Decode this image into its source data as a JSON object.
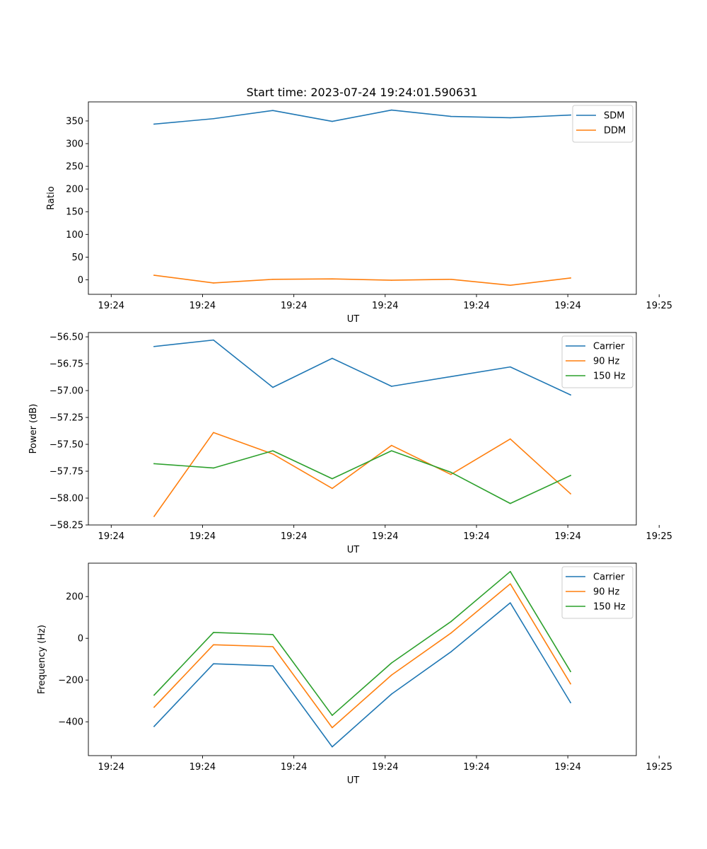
{
  "figure_title": "Start time: 2023-07-24 19:24:01.590631",
  "colors": {
    "blue": "#1f77b4",
    "orange": "#ff7f0e",
    "green": "#2ca02c"
  },
  "chart_data": [
    {
      "type": "line",
      "title": "Start time: 2023-07-24 19:24:01.590631",
      "xlabel": "UT",
      "ylabel": "Ratio",
      "x": [
        0.72,
        1.37,
        2.02,
        2.67,
        3.32,
        3.97,
        4.62,
        5.28
      ],
      "xlim": [
        0.0,
        6.0
      ],
      "xticks": [
        0.25,
        1.25,
        2.25,
        3.25,
        4.25,
        5.25,
        6.25
      ],
      "xtick_labels": [
        "19:24",
        "19:24",
        "19:24",
        "19:24",
        "19:24",
        "19:24",
        "19:25"
      ],
      "ylim": [
        -32,
        392
      ],
      "yticks": [
        0,
        50,
        100,
        150,
        200,
        250,
        300,
        350
      ],
      "ytick_labels": [
        "0",
        "50",
        "100",
        "150",
        "200",
        "250",
        "300",
        "350"
      ],
      "legend_position": "top-right",
      "series": [
        {
          "name": "SDM",
          "color": "#1f77b4",
          "values": [
            343,
            355,
            373,
            349,
            374,
            360,
            357,
            363
          ]
        },
        {
          "name": "DDM",
          "color": "#ff7f0e",
          "values": [
            10,
            -7,
            1,
            2,
            -1,
            1,
            -12,
            4
          ]
        }
      ]
    },
    {
      "type": "line",
      "title": "",
      "xlabel": "UT",
      "ylabel": "Power (dB)",
      "x": [
        0.72,
        1.37,
        2.02,
        2.67,
        3.32,
        3.97,
        4.62,
        5.28
      ],
      "xlim": [
        0.0,
        6.0
      ],
      "xticks": [
        0.25,
        1.25,
        2.25,
        3.25,
        4.25,
        5.25,
        6.25
      ],
      "xtick_labels": [
        "19:24",
        "19:24",
        "19:24",
        "19:24",
        "19:24",
        "19:24",
        "19:25"
      ],
      "ylim": [
        -58.25,
        -56.46
      ],
      "yticks": [
        -58.25,
        -58.0,
        -57.75,
        -57.5,
        -57.25,
        -57.0,
        -56.75,
        -56.5
      ],
      "ytick_labels": [
        "−58.25",
        "−58.00",
        "−57.75",
        "−57.50",
        "−57.25",
        "−57.00",
        "−56.75",
        "−56.50"
      ],
      "legend_position": "top-right",
      "series": [
        {
          "name": "Carrier",
          "color": "#1f77b4",
          "values": [
            -56.59,
            -56.53,
            -56.97,
            -56.7,
            -56.96,
            -56.87,
            -56.78,
            -57.04
          ]
        },
        {
          "name": "90 Hz",
          "color": "#ff7f0e",
          "values": [
            -58.17,
            -57.39,
            -57.59,
            -57.91,
            -57.51,
            -57.78,
            -57.45,
            -57.96
          ]
        },
        {
          "name": "150 Hz",
          "color": "#2ca02c",
          "values": [
            -57.68,
            -57.72,
            -57.56,
            -57.82,
            -57.56,
            -57.76,
            -58.05,
            -57.79
          ]
        }
      ]
    },
    {
      "type": "line",
      "title": "",
      "xlabel": "UT",
      "ylabel": "Frequency (Hz)",
      "x": [
        0.72,
        1.37,
        2.02,
        2.67,
        3.32,
        3.97,
        4.62,
        5.28
      ],
      "xlim": [
        0.0,
        6.0
      ],
      "xticks": [
        0.25,
        1.25,
        2.25,
        3.25,
        4.25,
        5.25,
        6.25
      ],
      "xtick_labels": [
        "19:24",
        "19:24",
        "19:24",
        "19:24",
        "19:24",
        "19:24",
        "19:25"
      ],
      "ylim": [
        -562,
        360
      ],
      "yticks": [
        -400,
        -200,
        0,
        200
      ],
      "ytick_labels": [
        "−400",
        "−200",
        "0",
        "200"
      ],
      "legend_position": "top-right",
      "series": [
        {
          "name": "Carrier",
          "color": "#1f77b4",
          "values": [
            -422,
            -122,
            -132,
            -520,
            -267,
            -65,
            170,
            -308
          ]
        },
        {
          "name": "90 Hz",
          "color": "#ff7f0e",
          "values": [
            -330,
            -31,
            -40,
            -428,
            -176,
            25,
            261,
            -218
          ]
        },
        {
          "name": "150 Hz",
          "color": "#2ca02c",
          "values": [
            -272,
            28,
            18,
            -369,
            -118,
            80,
            320,
            -159
          ]
        }
      ]
    }
  ]
}
